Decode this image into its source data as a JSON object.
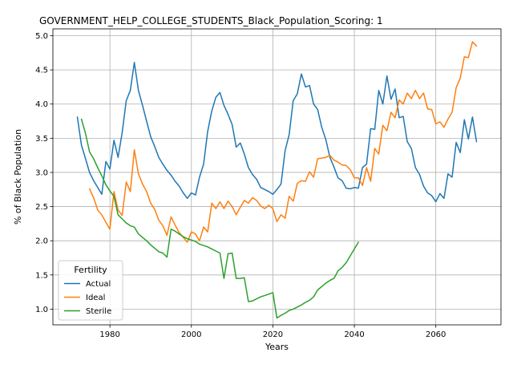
{
  "chart_data": {
    "type": "line",
    "title": "GOVERNMENT_HELP_COLLEGE_STUDENTS_Black_Population_Scoring: 1",
    "xlabel": "Years",
    "ylabel": "% of Black Population",
    "xlim": [
      1966,
      2076
    ],
    "ylim": [
      0.77,
      5.1
    ],
    "xticks": [
      1980,
      2000,
      2020,
      2040,
      2060
    ],
    "yticks": [
      1.0,
      1.5,
      2.0,
      2.5,
      3.0,
      3.5,
      4.0,
      4.5,
      5.0
    ],
    "grid": true,
    "legend": {
      "title": "Fertility",
      "placement": "lower-left"
    },
    "series": [
      {
        "name": "Actual",
        "color": "#1f77b4",
        "points": [
          [
            1972,
            3.81
          ],
          [
            1973,
            3.4
          ],
          [
            1974,
            3.2
          ],
          [
            1975,
            3.0
          ],
          [
            1976,
            2.88
          ],
          [
            1977,
            2.78
          ],
          [
            1978,
            2.68
          ],
          [
            1979,
            3.16
          ],
          [
            1980,
            3.05
          ],
          [
            1981,
            3.47
          ],
          [
            1982,
            3.22
          ],
          [
            1983,
            3.58
          ],
          [
            1984,
            4.05
          ],
          [
            1985,
            4.2
          ],
          [
            1986,
            4.61
          ],
          [
            1987,
            4.2
          ],
          [
            1988,
            3.98
          ],
          [
            1989,
            3.75
          ],
          [
            1990,
            3.52
          ],
          [
            1991,
            3.38
          ],
          [
            1992,
            3.22
          ],
          [
            1993,
            3.12
          ],
          [
            1994,
            3.03
          ],
          [
            1995,
            2.96
          ],
          [
            1996,
            2.87
          ],
          [
            1997,
            2.8
          ],
          [
            1998,
            2.7
          ],
          [
            1999,
            2.62
          ],
          [
            2000,
            2.7
          ],
          [
            2001,
            2.67
          ],
          [
            2002,
            2.93
          ],
          [
            2003,
            3.12
          ],
          [
            2004,
            3.6
          ],
          [
            2005,
            3.9
          ],
          [
            2006,
            4.1
          ],
          [
            2007,
            4.17
          ],
          [
            2008,
            3.98
          ],
          [
            2009,
            3.85
          ],
          [
            2010,
            3.7
          ],
          [
            2011,
            3.37
          ],
          [
            2012,
            3.43
          ],
          [
            2013,
            3.27
          ],
          [
            2014,
            3.07
          ],
          [
            2015,
            2.97
          ],
          [
            2016,
            2.9
          ],
          [
            2017,
            2.78
          ],
          [
            2018,
            2.75
          ],
          [
            2019,
            2.72
          ],
          [
            2020,
            2.68
          ],
          [
            2021,
            2.75
          ],
          [
            2022,
            2.83
          ],
          [
            2023,
            3.32
          ],
          [
            2024,
            3.55
          ],
          [
            2025,
            4.05
          ],
          [
            2026,
            4.15
          ],
          [
            2027,
            4.44
          ],
          [
            2028,
            4.25
          ],
          [
            2029,
            4.27
          ],
          [
            2030,
            4.0
          ],
          [
            2031,
            3.92
          ],
          [
            2032,
            3.66
          ],
          [
            2033,
            3.48
          ],
          [
            2034,
            3.22
          ],
          [
            2035,
            3.08
          ],
          [
            2036,
            2.92
          ],
          [
            2037,
            2.88
          ],
          [
            2038,
            2.77
          ],
          [
            2039,
            2.76
          ],
          [
            2040,
            2.78
          ],
          [
            2041,
            2.77
          ],
          [
            2042,
            3.07
          ],
          [
            2043,
            3.12
          ],
          [
            2044,
            3.64
          ],
          [
            2045,
            3.63
          ],
          [
            2046,
            4.2
          ],
          [
            2047,
            4.0
          ],
          [
            2048,
            4.41
          ],
          [
            2049,
            4.07
          ],
          [
            2050,
            4.22
          ],
          [
            2051,
            3.8
          ],
          [
            2052,
            3.82
          ],
          [
            2053,
            3.45
          ],
          [
            2054,
            3.35
          ],
          [
            2055,
            3.07
          ],
          [
            2056,
            2.97
          ],
          [
            2057,
            2.8
          ],
          [
            2058,
            2.7
          ],
          [
            2059,
            2.66
          ],
          [
            2060,
            2.57
          ],
          [
            2061,
            2.69
          ],
          [
            2062,
            2.62
          ],
          [
            2063,
            2.98
          ],
          [
            2064,
            2.93
          ],
          [
            2065,
            3.44
          ],
          [
            2066,
            3.29
          ],
          [
            2067,
            3.77
          ],
          [
            2068,
            3.49
          ],
          [
            2069,
            3.81
          ],
          [
            2070,
            3.45
          ]
        ]
      },
      {
        "name": "Ideal",
        "color": "#ff7f0e",
        "points": [
          [
            1975,
            2.76
          ],
          [
            1976,
            2.63
          ],
          [
            1977,
            2.45
          ],
          [
            1978,
            2.38
          ],
          [
            1979,
            2.27
          ],
          [
            1980,
            2.17
          ],
          [
            1981,
            2.72
          ],
          [
            1982,
            2.45
          ],
          [
            1983,
            2.37
          ],
          [
            1984,
            2.86
          ],
          [
            1985,
            2.72
          ],
          [
            1986,
            3.33
          ],
          [
            1987,
            2.98
          ],
          [
            1988,
            2.83
          ],
          [
            1989,
            2.72
          ],
          [
            1990,
            2.55
          ],
          [
            1991,
            2.46
          ],
          [
            1992,
            2.3
          ],
          [
            1993,
            2.22
          ],
          [
            1994,
            2.08
          ],
          [
            1995,
            2.35
          ],
          [
            1996,
            2.23
          ],
          [
            1997,
            2.12
          ],
          [
            1998,
            2.05
          ],
          [
            1999,
            1.98
          ],
          [
            2000,
            2.13
          ],
          [
            2001,
            2.1
          ],
          [
            2002,
            2.0
          ],
          [
            2003,
            2.2
          ],
          [
            2004,
            2.13
          ],
          [
            2005,
            2.55
          ],
          [
            2006,
            2.47
          ],
          [
            2007,
            2.57
          ],
          [
            2008,
            2.47
          ],
          [
            2009,
            2.58
          ],
          [
            2010,
            2.5
          ],
          [
            2011,
            2.38
          ],
          [
            2012,
            2.49
          ],
          [
            2013,
            2.59
          ],
          [
            2014,
            2.55
          ],
          [
            2015,
            2.63
          ],
          [
            2016,
            2.59
          ],
          [
            2017,
            2.51
          ],
          [
            2018,
            2.47
          ],
          [
            2019,
            2.52
          ],
          [
            2020,
            2.47
          ],
          [
            2021,
            2.28
          ],
          [
            2022,
            2.38
          ],
          [
            2023,
            2.33
          ],
          [
            2024,
            2.65
          ],
          [
            2025,
            2.58
          ],
          [
            2026,
            2.84
          ],
          [
            2027,
            2.88
          ],
          [
            2028,
            2.87
          ],
          [
            2029,
            3.01
          ],
          [
            2030,
            2.93
          ],
          [
            2031,
            3.2
          ],
          [
            2032,
            3.21
          ],
          [
            2033,
            3.22
          ],
          [
            2034,
            3.25
          ],
          [
            2035,
            3.18
          ],
          [
            2036,
            3.15
          ],
          [
            2037,
            3.11
          ],
          [
            2038,
            3.1
          ],
          [
            2039,
            3.04
          ],
          [
            2040,
            2.92
          ],
          [
            2041,
            2.92
          ],
          [
            2042,
            2.81
          ],
          [
            2043,
            3.07
          ],
          [
            2044,
            2.87
          ],
          [
            2045,
            3.35
          ],
          [
            2046,
            3.27
          ],
          [
            2047,
            3.69
          ],
          [
            2048,
            3.61
          ],
          [
            2049,
            3.88
          ],
          [
            2050,
            3.8
          ],
          [
            2051,
            4.06
          ],
          [
            2052,
            4.0
          ],
          [
            2053,
            4.16
          ],
          [
            2054,
            4.08
          ],
          [
            2055,
            4.2
          ],
          [
            2056,
            4.08
          ],
          [
            2057,
            4.16
          ],
          [
            2058,
            3.93
          ],
          [
            2059,
            3.92
          ],
          [
            2060,
            3.71
          ],
          [
            2061,
            3.74
          ],
          [
            2062,
            3.66
          ],
          [
            2063,
            3.78
          ],
          [
            2064,
            3.88
          ],
          [
            2065,
            4.24
          ],
          [
            2066,
            4.38
          ],
          [
            2067,
            4.69
          ],
          [
            2068,
            4.68
          ],
          [
            2069,
            4.91
          ],
          [
            2070,
            4.85
          ]
        ]
      },
      {
        "name": "Sterile",
        "color": "#2ca02c",
        "points": [
          [
            1973,
            3.78
          ],
          [
            1974,
            3.57
          ],
          [
            1975,
            3.3
          ],
          [
            1976,
            3.2
          ],
          [
            1977,
            3.07
          ],
          [
            1978,
            2.95
          ],
          [
            1979,
            2.82
          ],
          [
            1980,
            2.73
          ],
          [
            1981,
            2.65
          ],
          [
            1982,
            2.38
          ],
          [
            1983,
            2.32
          ],
          [
            1984,
            2.26
          ],
          [
            1985,
            2.22
          ],
          [
            1986,
            2.2
          ],
          [
            1987,
            2.1
          ],
          [
            1988,
            2.05
          ],
          [
            1989,
            2.0
          ],
          [
            1990,
            1.94
          ],
          [
            1991,
            1.89
          ],
          [
            1992,
            1.84
          ],
          [
            1993,
            1.82
          ],
          [
            1994,
            1.76
          ],
          [
            1995,
            2.17
          ],
          [
            1996,
            2.14
          ],
          [
            1997,
            2.1
          ],
          [
            1998,
            2.06
          ],
          [
            1999,
            2.03
          ],
          [
            2000,
            2.01
          ],
          [
            2001,
            1.99
          ],
          [
            2002,
            1.95
          ],
          [
            2003,
            1.93
          ],
          [
            2004,
            1.91
          ],
          [
            2005,
            1.88
          ],
          [
            2006,
            1.85
          ],
          [
            2007,
            1.82
          ],
          [
            2008,
            1.45
          ],
          [
            2009,
            1.81
          ],
          [
            2010,
            1.82
          ],
          [
            2011,
            1.45
          ],
          [
            2012,
            1.45
          ],
          [
            2013,
            1.46
          ],
          [
            2014,
            1.11
          ],
          [
            2015,
            1.12
          ],
          [
            2016,
            1.15
          ],
          [
            2017,
            1.18
          ],
          [
            2018,
            1.2
          ],
          [
            2019,
            1.22
          ],
          [
            2020,
            1.24
          ],
          [
            2021,
            0.87
          ],
          [
            2022,
            0.91
          ],
          [
            2023,
            0.94
          ],
          [
            2024,
            0.98
          ],
          [
            2025,
            1.0
          ],
          [
            2026,
            1.03
          ],
          [
            2027,
            1.06
          ],
          [
            2028,
            1.1
          ],
          [
            2029,
            1.13
          ],
          [
            2030,
            1.18
          ],
          [
            2031,
            1.28
          ],
          [
            2032,
            1.33
          ],
          [
            2033,
            1.38
          ],
          [
            2034,
            1.42
          ],
          [
            2035,
            1.45
          ],
          [
            2036,
            1.56
          ],
          [
            2037,
            1.61
          ],
          [
            2038,
            1.68
          ],
          [
            2039,
            1.78
          ],
          [
            2040,
            1.88
          ],
          [
            2041,
            1.98
          ]
        ]
      }
    ]
  }
}
